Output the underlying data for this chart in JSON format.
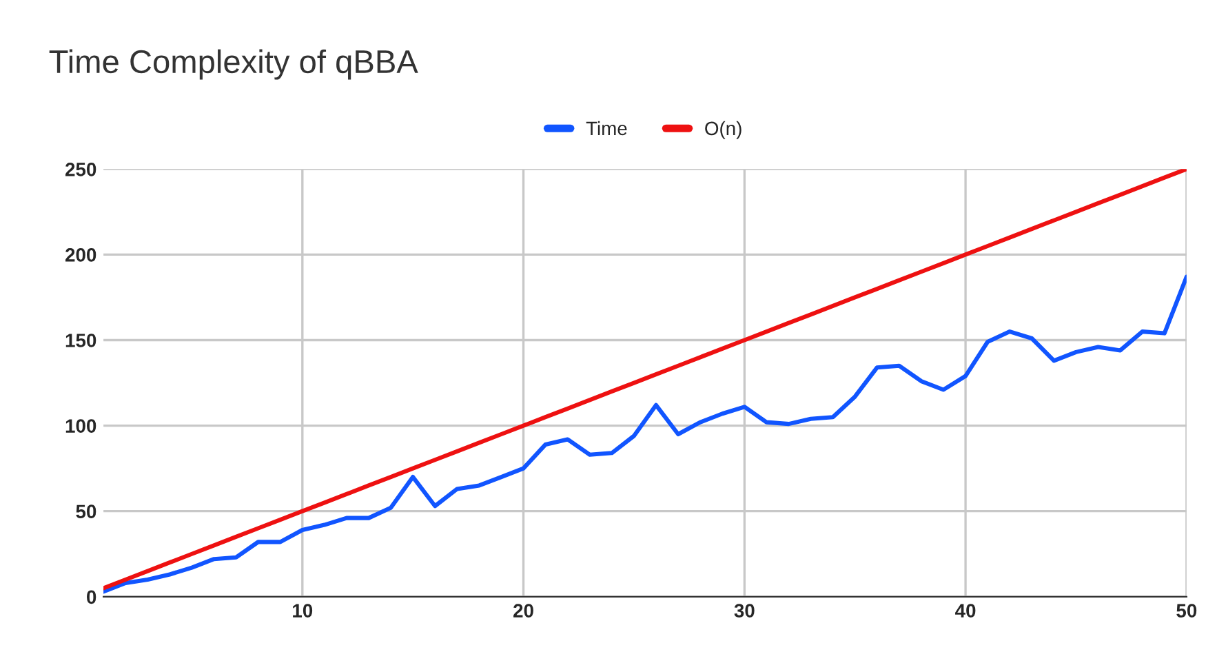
{
  "chart_data": {
    "type": "line",
    "title": "Time Complexity of qBBA",
    "x": [
      1,
      2,
      3,
      4,
      5,
      6,
      7,
      8,
      9,
      10,
      11,
      12,
      13,
      14,
      15,
      16,
      17,
      18,
      19,
      20,
      21,
      22,
      23,
      24,
      25,
      26,
      27,
      28,
      29,
      30,
      31,
      32,
      33,
      34,
      35,
      36,
      37,
      38,
      39,
      40,
      41,
      42,
      43,
      44,
      45,
      46,
      47,
      48,
      49,
      50
    ],
    "series": [
      {
        "name": "Time",
        "color": "#1155ff",
        "values": [
          3,
          8,
          10,
          13,
          17,
          22,
          23,
          32,
          32,
          39,
          42,
          46,
          46,
          52,
          70,
          53,
          63,
          65,
          70,
          75,
          89,
          92,
          83,
          84,
          94,
          112,
          95,
          102,
          107,
          111,
          102,
          101,
          104,
          105,
          117,
          134,
          135,
          126,
          121,
          129,
          149,
          155,
          151,
          138,
          143,
          146,
          144,
          155,
          154,
          187
        ]
      },
      {
        "name": "O(n)",
        "color": "#ee1111",
        "values": [
          5,
          10,
          15,
          20,
          25,
          30,
          35,
          40,
          45,
          50,
          55,
          60,
          65,
          70,
          75,
          80,
          85,
          90,
          95,
          100,
          105,
          110,
          115,
          120,
          125,
          130,
          135,
          140,
          145,
          150,
          155,
          160,
          165,
          170,
          175,
          180,
          185,
          190,
          195,
          200,
          205,
          210,
          215,
          220,
          225,
          230,
          235,
          240,
          245,
          250
        ]
      }
    ],
    "xlim": [
      1,
      50
    ],
    "xticks": [
      10,
      20,
      30,
      40,
      50
    ],
    "ylim": [
      0,
      250
    ],
    "yticks": [
      0,
      50,
      100,
      150,
      200,
      250
    ],
    "grid": true,
    "legend": "top",
    "marker": "none",
    "line_style": "solid"
  }
}
